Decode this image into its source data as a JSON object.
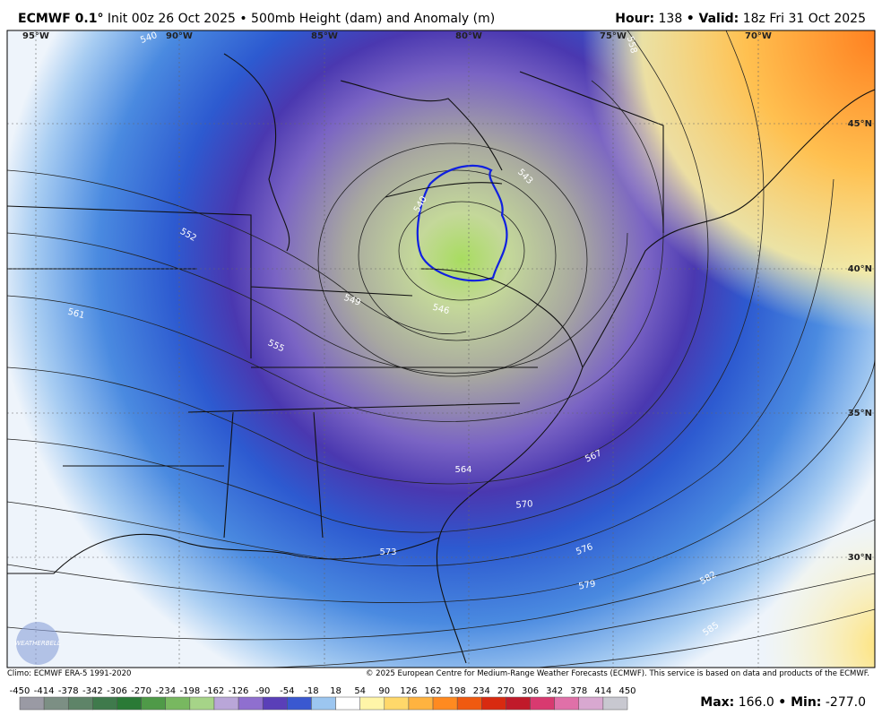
{
  "header": {
    "model": "ECMWF 0.1°",
    "subtitle": "Init 00z 26 Oct 2025 • 500mb Height (dam) and Anomaly (m)",
    "hour_label": "Hour:",
    "hour": "138",
    "valid_label": "• Valid:",
    "valid": "18z Fri 31 Oct 2025"
  },
  "map": {
    "lon_labels": [
      "95°W",
      "90°W",
      "85°W",
      "80°W",
      "75°W",
      "70°W"
    ],
    "lat_labels": [
      "45°N",
      "40°N",
      "35°N",
      "30°N"
    ],
    "contour_labels": [
      "540",
      "540",
      "543",
      "546",
      "549",
      "552",
      "555",
      "558",
      "561",
      "564",
      "567",
      "570",
      "573",
      "576",
      "579",
      "582",
      "585"
    ],
    "watermark": "WEATHERBELL"
  },
  "footer": {
    "climo": "Climo: ECMWF ERA-5 1991-2020",
    "copyright": "© 2025 European Centre for Medium-Range Weather Forecasts (ECMWF). This service is based on data and products of the ECMWF."
  },
  "colorbar": {
    "ticks": [
      -450,
      -414,
      -378,
      -342,
      -306,
      -270,
      -234,
      -198,
      -162,
      -126,
      -90,
      -54,
      -18,
      18,
      54,
      90,
      126,
      162,
      198,
      234,
      270,
      306,
      342,
      378,
      414,
      450
    ],
    "colors": [
      "#9a9aa4",
      "#7c8f84",
      "#5e8468",
      "#3f7a4c",
      "#2a7a36",
      "#4f9a48",
      "#78b860",
      "#a6d488",
      "#b9a6d8",
      "#8f6fcf",
      "#5a3fb8",
      "#3a58d0",
      "#9cc6f0",
      "#ffffff",
      "#fff5a8",
      "#ffd86a",
      "#ffb340",
      "#ff8a20",
      "#f05a10",
      "#d82a10",
      "#c01a2a",
      "#d83a70",
      "#e070a8",
      "#d8a8d0",
      "#c8c8d0"
    ]
  },
  "stats": {
    "max_label": "Max:",
    "max": "166.0",
    "min_label": "• Min:",
    "min": "-277.0"
  }
}
